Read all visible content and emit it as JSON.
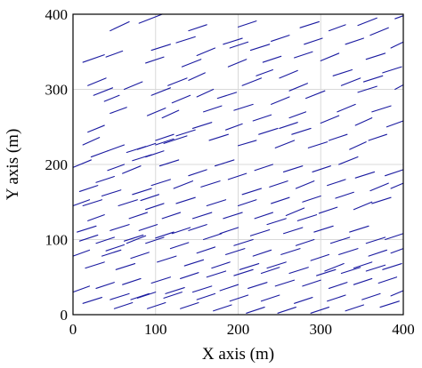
{
  "chart_data": {
    "type": "scatter",
    "title": "",
    "xlabel": "X axis (m)",
    "ylabel": "Y axis (m)",
    "xlim": [
      0,
      400
    ],
    "ylim": [
      0,
      400
    ],
    "xticks": [
      "0",
      "100",
      "200",
      "300",
      "400"
    ],
    "yticks": [
      "0",
      "100",
      "200",
      "300",
      "400"
    ],
    "grid": true,
    "legend": "none",
    "mark": "line-segment",
    "segment_color": "#1a1aa0",
    "segments": [
      [
        45,
        378,
        68,
        390
      ],
      [
        80,
        388,
        108,
        400
      ],
      [
        12,
        336,
        38,
        346
      ],
      [
        40,
        343,
        60,
        351
      ],
      [
        18,
        305,
        40,
        315
      ],
      [
        25,
        292,
        48,
        302
      ],
      [
        38,
        284,
        56,
        292
      ],
      [
        18,
        243,
        38,
        252
      ],
      [
        12,
        226,
        32,
        236
      ],
      [
        0,
        196,
        22,
        206
      ],
      [
        22,
        210,
        42,
        218
      ],
      [
        42,
        218,
        62,
        226
      ],
      [
        45,
        268,
        65,
        276
      ],
      [
        62,
        300,
        84,
        310
      ],
      [
        88,
        335,
        110,
        343
      ],
      [
        115,
        305,
        138,
        315
      ],
      [
        120,
        282,
        142,
        292
      ],
      [
        108,
        262,
        128,
        272
      ],
      [
        90,
        265,
        112,
        275
      ],
      [
        95,
        292,
        118,
        302
      ],
      [
        140,
        312,
        160,
        322
      ],
      [
        150,
        290,
        170,
        300
      ],
      [
        158,
        270,
        180,
        278
      ],
      [
        175,
        288,
        198,
        296
      ],
      [
        188,
        330,
        210,
        340
      ],
      [
        150,
        345,
        172,
        355
      ],
      [
        125,
        362,
        148,
        370
      ],
      [
        140,
        378,
        162,
        386
      ],
      [
        182,
        360,
        205,
        368
      ],
      [
        200,
        383,
        222,
        391
      ],
      [
        215,
        352,
        238,
        360
      ],
      [
        230,
        336,
        252,
        344
      ],
      [
        250,
        315,
        272,
        325
      ],
      [
        262,
        298,
        284,
        308
      ],
      [
        268,
        342,
        290,
        350
      ],
      [
        280,
        360,
        302,
        368
      ],
      [
        300,
        338,
        322,
        348
      ],
      [
        315,
        318,
        338,
        326
      ],
      [
        325,
        305,
        348,
        315
      ],
      [
        345,
        296,
        368,
        304
      ],
      [
        330,
        360,
        352,
        368
      ],
      [
        355,
        340,
        378,
        348
      ],
      [
        375,
        322,
        398,
        330
      ],
      [
        360,
        372,
        382,
        382
      ],
      [
        385,
        355,
        400,
        363
      ],
      [
        390,
        300,
        400,
        306
      ],
      [
        275,
        382,
        298,
        390
      ],
      [
        310,
        378,
        330,
        386
      ],
      [
        345,
        385,
        368,
        395
      ],
      [
        390,
        394,
        400,
        398
      ],
      [
        240,
        364,
        262,
        372
      ],
      [
        222,
        318,
        242,
        326
      ],
      [
        205,
        305,
        228,
        315
      ],
      [
        195,
        272,
        218,
        280
      ],
      [
        218,
        258,
        240,
        266
      ],
      [
        240,
        280,
        262,
        290
      ],
      [
        262,
        262,
        282,
        270
      ],
      [
        282,
        288,
        305,
        298
      ],
      [
        300,
        255,
        322,
        265
      ],
      [
        320,
        270,
        342,
        280
      ],
      [
        342,
        252,
        362,
        262
      ],
      [
        362,
        270,
        385,
        278
      ],
      [
        380,
        250,
        400,
        258
      ],
      [
        358,
        232,
        380,
        240
      ],
      [
        335,
        220,
        355,
        230
      ],
      [
        310,
        232,
        332,
        240
      ],
      [
        285,
        222,
        308,
        230
      ],
      [
        265,
        240,
        288,
        248
      ],
      [
        245,
        222,
        268,
        232
      ],
      [
        225,
        240,
        248,
        248
      ],
      [
        200,
        225,
        222,
        232
      ],
      [
        185,
        246,
        205,
        254
      ],
      [
        165,
        232,
        188,
        240
      ],
      [
        145,
        248,
        168,
        256
      ],
      [
        125,
        238,
        148,
        246
      ],
      [
        100,
        232,
        122,
        240
      ],
      [
        78,
        220,
        100,
        228
      ],
      [
        65,
        216,
        88,
        224
      ],
      [
        72,
        205,
        95,
        213
      ],
      [
        88,
        210,
        110,
        218
      ],
      [
        100,
        226,
        122,
        234
      ],
      [
        60,
        188,
        82,
        198
      ],
      [
        42,
        192,
        62,
        200
      ],
      [
        28,
        176,
        50,
        184
      ],
      [
        8,
        164,
        30,
        172
      ],
      [
        0,
        145,
        20,
        153
      ],
      [
        18,
        125,
        38,
        133
      ],
      [
        5,
        110,
        28,
        118
      ],
      [
        28,
        95,
        50,
        103
      ],
      [
        45,
        112,
        68,
        120
      ],
      [
        65,
        95,
        88,
        105
      ],
      [
        68,
        128,
        90,
        136
      ],
      [
        82,
        152,
        104,
        160
      ],
      [
        95,
        172,
        118,
        180
      ],
      [
        105,
        198,
        128,
        206
      ],
      [
        122,
        168,
        145,
        178
      ],
      [
        140,
        185,
        162,
        193
      ],
      [
        155,
        170,
        178,
        178
      ],
      [
        172,
        198,
        195,
        206
      ],
      [
        188,
        180,
        210,
        188
      ],
      [
        205,
        160,
        228,
        168
      ],
      [
        220,
        192,
        242,
        200
      ],
      [
        238,
        170,
        260,
        178
      ],
      [
        255,
        190,
        278,
        198
      ],
      [
        270,
        168,
        292,
        178
      ],
      [
        290,
        190,
        312,
        198
      ],
      [
        308,
        172,
        330,
        180
      ],
      [
        322,
        200,
        345,
        210
      ],
      [
        342,
        182,
        365,
        190
      ],
      [
        360,
        165,
        382,
        175
      ],
      [
        378,
        185,
        400,
        193
      ],
      [
        385,
        168,
        400,
        175
      ],
      [
        362,
        148,
        385,
        156
      ],
      [
        340,
        140,
        362,
        150
      ],
      [
        318,
        155,
        340,
        163
      ],
      [
        298,
        135,
        320,
        143
      ],
      [
        278,
        150,
        300,
        158
      ],
      [
        258,
        132,
        280,
        142
      ],
      [
        240,
        148,
        262,
        156
      ],
      [
        220,
        128,
        242,
        136
      ],
      [
        200,
        145,
        222,
        153
      ],
      [
        182,
        128,
        205,
        136
      ],
      [
        162,
        145,
        185,
        153
      ],
      [
        145,
        128,
        168,
        136
      ],
      [
        125,
        148,
        148,
        156
      ],
      [
        108,
        128,
        130,
        136
      ],
      [
        88,
        140,
        110,
        148
      ],
      [
        72,
        160,
        95,
        168
      ],
      [
        55,
        145,
        78,
        153
      ],
      [
        35,
        158,
        58,
        166
      ],
      [
        12,
        145,
        35,
        153
      ],
      [
        8,
        98,
        30,
        106
      ],
      [
        0,
        78,
        20,
        86
      ],
      [
        15,
        62,
        38,
        70
      ],
      [
        35,
        78,
        58,
        86
      ],
      [
        52,
        60,
        75,
        68
      ],
      [
        70,
        75,
        92,
        83
      ],
      [
        88,
        95,
        110,
        103
      ],
      [
        102,
        70,
        125,
        78
      ],
      [
        118,
        88,
        140,
        96
      ],
      [
        135,
        65,
        158,
        73
      ],
      [
        150,
        82,
        172,
        90
      ],
      [
        168,
        62,
        190,
        70
      ],
      [
        185,
        80,
        208,
        88
      ],
      [
        202,
        60,
        225,
        68
      ],
      [
        218,
        78,
        240,
        86
      ],
      [
        235,
        62,
        258,
        70
      ],
      [
        252,
        80,
        275,
        88
      ],
      [
        270,
        92,
        292,
        100
      ],
      [
        288,
        72,
        310,
        80
      ],
      [
        305,
        58,
        328,
        68
      ],
      [
        322,
        80,
        345,
        88
      ],
      [
        340,
        62,
        362,
        70
      ],
      [
        358,
        78,
        380,
        86
      ],
      [
        375,
        60,
        398,
        68
      ],
      [
        385,
        82,
        400,
        88
      ],
      [
        378,
        100,
        400,
        108
      ],
      [
        355,
        95,
        378,
        103
      ],
      [
        335,
        110,
        358,
        118
      ],
      [
        312,
        95,
        335,
        103
      ],
      [
        292,
        110,
        315,
        118
      ],
      [
        272,
        125,
        295,
        133
      ],
      [
        255,
        108,
        278,
        116
      ],
      [
        235,
        120,
        258,
        128
      ],
      [
        215,
        105,
        238,
        113
      ],
      [
        195,
        92,
        218,
        100
      ],
      [
        178,
        108,
        200,
        116
      ],
      [
        158,
        100,
        180,
        108
      ],
      [
        140,
        112,
        162,
        120
      ],
      [
        120,
        108,
        142,
        116
      ],
      [
        100,
        102,
        122,
        110
      ],
      [
        80,
        112,
        102,
        120
      ],
      [
        62,
        98,
        85,
        106
      ],
      [
        40,
        85,
        62,
        93
      ],
      [
        0,
        30,
        20,
        38
      ],
      [
        12,
        15,
        35,
        23
      ],
      [
        28,
        35,
        50,
        43
      ],
      [
        45,
        20,
        68,
        28
      ],
      [
        60,
        40,
        82,
        48
      ],
      [
        78,
        22,
        100,
        30
      ],
      [
        95,
        42,
        118,
        50
      ],
      [
        112,
        28,
        135,
        36
      ],
      [
        130,
        48,
        152,
        56
      ],
      [
        145,
        30,
        168,
        38
      ],
      [
        162,
        50,
        185,
        58
      ],
      [
        178,
        32,
        200,
        40
      ],
      [
        195,
        52,
        218,
        60
      ],
      [
        212,
        35,
        235,
        43
      ],
      [
        228,
        55,
        250,
        63
      ],
      [
        245,
        38,
        268,
        46
      ],
      [
        262,
        55,
        285,
        63
      ],
      [
        278,
        38,
        300,
        46
      ],
      [
        295,
        52,
        318,
        60
      ],
      [
        310,
        35,
        332,
        43
      ],
      [
        325,
        55,
        348,
        63
      ],
      [
        340,
        40,
        362,
        48
      ],
      [
        355,
        58,
        378,
        66
      ],
      [
        370,
        42,
        392,
        50
      ],
      [
        385,
        25,
        400,
        32
      ],
      [
        372,
        10,
        395,
        18
      ],
      [
        350,
        20,
        372,
        28
      ],
      [
        330,
        5,
        352,
        13
      ],
      [
        308,
        18,
        330,
        26
      ],
      [
        288,
        2,
        310,
        10
      ],
      [
        268,
        15,
        290,
        23
      ],
      [
        248,
        2,
        270,
        10
      ],
      [
        228,
        18,
        250,
        26
      ],
      [
        210,
        2,
        232,
        10
      ],
      [
        190,
        18,
        212,
        26
      ],
      [
        170,
        5,
        192,
        13
      ],
      [
        150,
        20,
        172,
        28
      ],
      [
        130,
        8,
        152,
        16
      ],
      [
        110,
        22,
        132,
        30
      ],
      [
        90,
        8,
        112,
        16
      ],
      [
        70,
        20,
        92,
        28
      ],
      [
        50,
        8,
        72,
        16
      ],
      [
        110,
        228,
        138,
        238
      ],
      [
        190,
        355,
        212,
        363
      ],
      [
        95,
        352,
        118,
        360
      ],
      [
        132,
        330,
        155,
        340
      ],
      [
        352,
        310,
        375,
        318
      ],
      [
        250,
        248,
        272,
        256
      ]
    ]
  }
}
